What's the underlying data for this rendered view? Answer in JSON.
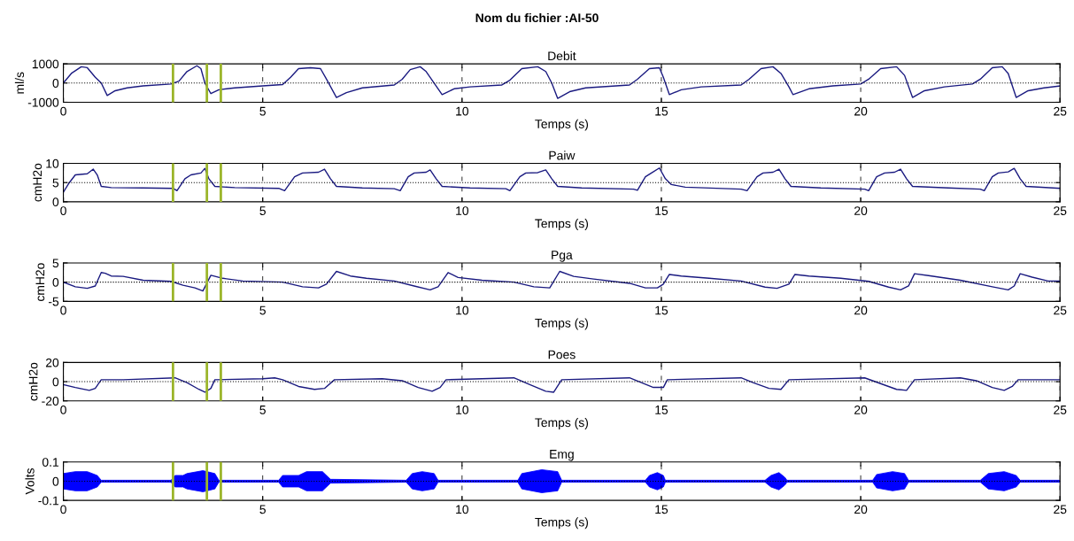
{
  "chart_data": [
    {
      "type": "line",
      "annotations": [
        "Nom du fichier :AI-50"
      ],
      "title": "Debit",
      "xlabel": "Temps (s)",
      "ylabel": "ml/s",
      "xlim": [
        0,
        25
      ],
      "xticks": [
        0,
        5,
        10,
        15,
        20,
        25
      ],
      "ylim": [
        -1000,
        1000
      ],
      "yticks": [
        -1000,
        0,
        1000
      ],
      "grid": "x",
      "series": [
        {
          "color": "#1a1a80",
          "x": [
            0,
            0.2,
            0.45,
            0.6,
            0.8,
            0.95,
            1.1,
            1.3,
            1.6,
            2.0,
            2.7,
            2.9,
            3.1,
            3.35,
            3.45,
            3.55,
            3.7,
            3.9,
            4.3,
            5.0,
            5.5,
            5.7,
            5.9,
            6.2,
            6.45,
            6.6,
            6.85,
            7.1,
            7.5,
            8.3,
            8.5,
            8.7,
            8.95,
            9.1,
            9.3,
            9.5,
            9.8,
            10.2,
            11.0,
            11.2,
            11.5,
            11.9,
            12.1,
            12.25,
            12.4,
            12.7,
            13.1,
            14.2,
            14.4,
            14.7,
            14.95,
            15.05,
            15.2,
            15.5,
            16.0,
            17.0,
            17.2,
            17.5,
            17.8,
            18.0,
            18.2,
            18.3,
            18.7,
            19.3,
            20.0,
            20.2,
            20.5,
            20.9,
            21.1,
            21.3,
            21.6,
            22.1,
            22.8,
            23.0,
            23.3,
            23.55,
            23.7,
            23.9,
            24.2,
            24.6,
            25.0
          ],
          "values": [
            0,
            500,
            850,
            800,
            300,
            0,
            -650,
            -400,
            -250,
            -150,
            -50,
            100,
            600,
            900,
            750,
            0,
            -550,
            -350,
            -250,
            -150,
            -80,
            300,
            750,
            800,
            750,
            200,
            -750,
            -500,
            -250,
            -100,
            200,
            700,
            850,
            600,
            0,
            -600,
            -300,
            -200,
            -100,
            150,
            750,
            850,
            600,
            0,
            -800,
            -450,
            -250,
            -100,
            200,
            750,
            800,
            300,
            -600,
            -350,
            -200,
            -100,
            200,
            750,
            850,
            500,
            -200,
            -600,
            -300,
            -150,
            -50,
            200,
            750,
            850,
            400,
            -750,
            -400,
            -200,
            -50,
            200,
            800,
            850,
            500,
            -750,
            -400,
            -250,
            -150
          ]
        }
      ],
      "ref_lines": [
        {
          "axis": "y",
          "value": 0,
          "color": "#000000",
          "line_style": "dotted"
        },
        {
          "axis": "x",
          "value": 2.75,
          "color": "#9bb52a"
        },
        {
          "axis": "x",
          "value": 3.6,
          "color": "#9bb52a"
        },
        {
          "axis": "x",
          "value": 3.95,
          "color": "#9bb52a"
        }
      ]
    },
    {
      "type": "line",
      "title": "Paiw",
      "xlabel": "Temps (s)",
      "ylabel": "cmH2o",
      "xlim": [
        0,
        25
      ],
      "xticks": [
        0,
        5,
        10,
        15,
        20,
        25
      ],
      "ylim": [
        0,
        10
      ],
      "yticks": [
        0,
        5,
        10
      ],
      "grid": "x",
      "series": [
        {
          "color": "#1a1a80",
          "x": [
            0,
            0.15,
            0.3,
            0.6,
            0.75,
            0.85,
            0.95,
            1.2,
            2.0,
            2.75,
            2.85,
            3.05,
            3.2,
            3.45,
            3.55,
            3.65,
            3.8,
            4.3,
            5.4,
            5.55,
            5.8,
            6.0,
            6.4,
            6.55,
            6.7,
            6.85,
            7.5,
            8.3,
            8.45,
            8.65,
            8.8,
            9.1,
            9.2,
            9.35,
            9.5,
            10.2,
            11.1,
            11.2,
            11.45,
            11.6,
            11.9,
            12.1,
            12.25,
            12.4,
            13.0,
            14.3,
            14.4,
            14.6,
            14.75,
            14.95,
            15.1,
            15.25,
            15.6,
            17.0,
            17.15,
            17.4,
            17.55,
            17.8,
            17.95,
            18.1,
            18.25,
            19.0,
            20.1,
            20.2,
            20.4,
            20.6,
            20.85,
            21.0,
            21.15,
            21.3,
            22.2,
            23.0,
            23.1,
            23.3,
            23.45,
            23.7,
            23.85,
            24.0,
            24.15,
            25.0
          ],
          "values": [
            2.5,
            5,
            7,
            7.3,
            8.5,
            7,
            4,
            3.7,
            3.6,
            3.5,
            2.9,
            6,
            7,
            7.5,
            8.7,
            6,
            4,
            3.7,
            3.5,
            2.9,
            6.5,
            7.5,
            7.7,
            8.5,
            6,
            4,
            3.6,
            3.4,
            2.9,
            6.5,
            7.5,
            7.7,
            8.3,
            6,
            4,
            3.6,
            3.4,
            2.9,
            6.5,
            7.5,
            7.6,
            8.3,
            6,
            4,
            3.6,
            3.3,
            3,
            6.5,
            7.5,
            8.8,
            6,
            4.5,
            3.8,
            3.3,
            2.9,
            6.5,
            7.5,
            7.7,
            8.5,
            6,
            4,
            3.6,
            3.3,
            2.9,
            6.5,
            7.5,
            7.7,
            8.5,
            6,
            4,
            3.6,
            3.3,
            2.9,
            6.5,
            7.5,
            7.8,
            8.7,
            6,
            4,
            3.5
          ]
        }
      ],
      "ref_lines": [
        {
          "axis": "y",
          "value": 5,
          "color": "#000000",
          "line_style": "dotted"
        },
        {
          "axis": "x",
          "value": 2.75,
          "color": "#9bb52a"
        },
        {
          "axis": "x",
          "value": 3.6,
          "color": "#9bb52a"
        },
        {
          "axis": "x",
          "value": 3.95,
          "color": "#9bb52a"
        }
      ]
    },
    {
      "type": "line",
      "title": "Pga",
      "xlabel": "Temps (s)",
      "ylabel": "cmH2o",
      "xlim": [
        0,
        25
      ],
      "xticks": [
        0,
        5,
        10,
        15,
        20,
        25
      ],
      "ylim": [
        -5,
        5
      ],
      "yticks": [
        -5,
        0,
        5
      ],
      "grid": "x",
      "series": [
        {
          "color": "#1a1a80",
          "x": [
            0,
            0.3,
            0.6,
            0.8,
            0.95,
            1.05,
            1.2,
            1.5,
            2.0,
            2.7,
            3.0,
            3.3,
            3.5,
            3.7,
            4.0,
            4.5,
            5.5,
            6.0,
            6.4,
            6.6,
            6.85,
            7.2,
            7.6,
            8.3,
            8.8,
            9.2,
            9.4,
            9.65,
            9.9,
            10.5,
            11.3,
            11.8,
            12.2,
            12.45,
            12.8,
            13.3,
            14.2,
            14.6,
            14.9,
            15.05,
            15.2,
            15.5,
            16.2,
            17.0,
            17.6,
            17.9,
            18.2,
            18.35,
            18.7,
            19.5,
            20.2,
            20.7,
            21.0,
            21.2,
            21.35,
            21.7,
            22.5,
            23.3,
            23.7,
            23.85,
            24.0,
            24.3,
            24.7,
            25.0
          ],
          "values": [
            0,
            -1.2,
            -1.6,
            -1.0,
            2.5,
            2.3,
            1.6,
            1.5,
            0.5,
            0.2,
            -0.8,
            -1.5,
            -2.3,
            1.8,
            1.0,
            0.3,
            0,
            -1.2,
            -1.5,
            -0.5,
            2.8,
            1.6,
            1.0,
            0.3,
            -1.0,
            -2.0,
            -1.2,
            2.5,
            1.2,
            0.5,
            0,
            -1.2,
            -1.5,
            2.8,
            1.5,
            0.8,
            -0.3,
            -1.5,
            -1.5,
            -0.5,
            2.0,
            1.6,
            1.0,
            0.3,
            -1.3,
            -1.6,
            -0.5,
            2.0,
            1.6,
            1.0,
            0.2,
            -1.3,
            -2.0,
            -1.0,
            2.2,
            1.7,
            0.5,
            -1.2,
            -2.0,
            -1.0,
            2.2,
            1.3,
            0.3,
            0.3
          ]
        }
      ],
      "ref_lines": [
        {
          "axis": "y",
          "value": 0,
          "color": "#000000",
          "line_style": "dotted"
        },
        {
          "axis": "x",
          "value": 2.75,
          "color": "#9bb52a"
        },
        {
          "axis": "x",
          "value": 3.6,
          "color": "#9bb52a"
        },
        {
          "axis": "x",
          "value": 3.95,
          "color": "#9bb52a"
        }
      ]
    },
    {
      "type": "line",
      "title": "Poes",
      "xlabel": "Temps (s)",
      "ylabel": "cmH2o",
      "xlim": [
        0,
        25
      ],
      "xticks": [
        0,
        5,
        10,
        15,
        20,
        25
      ],
      "ylim": [
        -20,
        20
      ],
      "yticks": [
        -20,
        0,
        20
      ],
      "grid": "x",
      "series": [
        {
          "color": "#1a1a80",
          "x": [
            0,
            0.3,
            0.65,
            0.8,
            0.95,
            1.5,
            2.8,
            3.1,
            3.4,
            3.55,
            3.7,
            3.8,
            5.0,
            5.3,
            5.5,
            5.9,
            6.3,
            6.55,
            6.8,
            8.0,
            8.5,
            8.9,
            9.25,
            9.45,
            9.6,
            10.5,
            11.3,
            11.7,
            12.1,
            12.3,
            12.5,
            14.2,
            14.5,
            14.8,
            15.05,
            15.15,
            17.0,
            17.3,
            17.7,
            18.0,
            18.2,
            20.1,
            20.5,
            20.9,
            21.15,
            21.35,
            22.5,
            22.9,
            23.3,
            23.6,
            23.8,
            23.95,
            25.0
          ],
          "values": [
            -3,
            -6,
            -9,
            -7,
            2,
            2,
            4,
            -1,
            -8,
            -11,
            -7,
            2,
            3,
            4,
            2,
            -5,
            -8,
            -7,
            2,
            3,
            1,
            -6,
            -10,
            -6,
            2,
            3,
            4,
            -3,
            -10,
            -11,
            2,
            4,
            -1,
            -6,
            -6,
            2,
            4,
            -1,
            -7,
            -8,
            2,
            4,
            -2,
            -8,
            -9,
            2,
            4,
            1,
            -6,
            -9,
            -5,
            2,
            2
          ]
        }
      ],
      "ref_lines": [
        {
          "axis": "y",
          "value": 0,
          "color": "#000000",
          "line_style": "dotted"
        },
        {
          "axis": "x",
          "value": 2.75,
          "color": "#9bb52a"
        },
        {
          "axis": "x",
          "value": 3.6,
          "color": "#9bb52a"
        },
        {
          "axis": "x",
          "value": 3.95,
          "color": "#9bb52a"
        }
      ]
    },
    {
      "type": "line",
      "title": "Emg",
      "xlabel": "Temps (s)",
      "ylabel": "Volts",
      "xlim": [
        0,
        25
      ],
      "xticks": [
        0,
        5,
        10,
        15,
        20,
        25
      ],
      "ylim": [
        -0.1,
        0.1
      ],
      "yticks": [
        -0.1,
        0,
        0.1
      ],
      "grid": "x",
      "series": [
        {
          "color": "#0000ff",
          "x": [
            0,
            0.3,
            0.6,
            0.85,
            0.95,
            2.7,
            2.8,
            3.0,
            3.1,
            3.5,
            3.8,
            3.9,
            5.4,
            5.5,
            5.9,
            6.1,
            6.5,
            6.7,
            8.6,
            8.75,
            9.0,
            9.3,
            9.4,
            11.4,
            11.5,
            12.0,
            12.4,
            12.5,
            14.6,
            14.7,
            14.9,
            15.05,
            15.1,
            17.6,
            17.75,
            17.95,
            18.1,
            18.15,
            20.3,
            20.4,
            20.8,
            21.1,
            21.2,
            23.0,
            23.2,
            23.6,
            23.9,
            24.0,
            25.0
          ],
          "values": [
            0,
            0,
            0,
            0,
            0,
            0,
            0,
            0,
            0,
            0,
            0,
            0,
            0,
            0,
            0,
            0,
            0,
            0,
            0,
            0,
            0,
            0,
            0,
            0,
            0,
            0,
            0,
            0,
            0,
            0,
            0,
            0,
            0,
            0,
            0,
            0,
            0,
            0,
            0,
            0,
            0,
            0,
            0,
            0,
            0,
            0,
            0,
            0,
            0
          ],
          "upper": [
            0.04,
            0.05,
            0.05,
            0.03,
            0.005,
            0.005,
            0.03,
            0.03,
            0.04,
            0.055,
            0.04,
            0.005,
            0.005,
            0.03,
            0.03,
            0.05,
            0.05,
            0.01,
            0.005,
            0.04,
            0.05,
            0.04,
            0.005,
            0.005,
            0.04,
            0.06,
            0.05,
            0.005,
            0.005,
            0.03,
            0.045,
            0.03,
            0.005,
            0.005,
            0.03,
            0.045,
            0.02,
            0.005,
            0.005,
            0.035,
            0.05,
            0.04,
            0.005,
            0.005,
            0.04,
            0.05,
            0.03,
            0.005,
            0.005
          ],
          "lower": [
            -0.04,
            -0.05,
            -0.05,
            -0.03,
            -0.005,
            -0.005,
            -0.03,
            -0.03,
            -0.04,
            -0.055,
            -0.04,
            -0.005,
            -0.005,
            -0.03,
            -0.03,
            -0.05,
            -0.05,
            -0.01,
            -0.005,
            -0.04,
            -0.05,
            -0.04,
            -0.005,
            -0.005,
            -0.04,
            -0.06,
            -0.05,
            -0.005,
            -0.005,
            -0.03,
            -0.045,
            -0.03,
            -0.005,
            -0.005,
            -0.03,
            -0.045,
            -0.02,
            -0.005,
            -0.005,
            -0.035,
            -0.05,
            -0.04,
            -0.005,
            -0.005,
            -0.04,
            -0.05,
            -0.03,
            -0.005,
            -0.005
          ]
        }
      ],
      "ref_lines": [
        {
          "axis": "y",
          "value": 0,
          "color": "#000000",
          "line_style": "dotted"
        },
        {
          "axis": "x",
          "value": 2.75,
          "color": "#9bb52a"
        },
        {
          "axis": "x",
          "value": 3.6,
          "color": "#9bb52a"
        },
        {
          "axis": "x",
          "value": 3.95,
          "color": "#9bb52a"
        }
      ]
    }
  ]
}
